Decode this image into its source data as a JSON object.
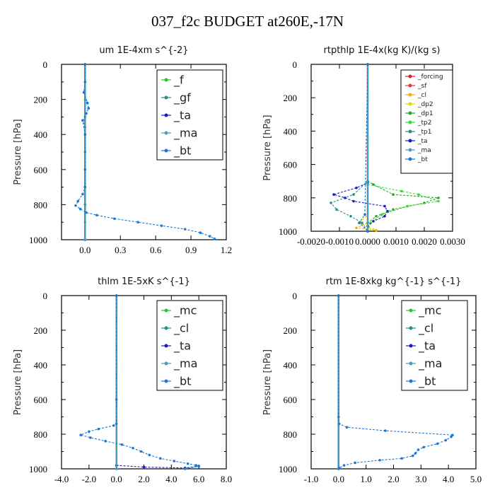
{
  "title": "037_f2c  BUDGET at260E,-17N",
  "chart_data": [
    {
      "type": "line",
      "title": "um  1E-4xm s^{-2}",
      "ylabel": "Pressure [hPa]",
      "xlim": [
        -0.2,
        1.2
      ],
      "ylim": [
        1000,
        0
      ],
      "xticks": [
        "0.0",
        "0.3",
        "0.6",
        "0.9",
        "1.2"
      ],
      "xtick_values": [
        0,
        0.3,
        0.6,
        0.9,
        1.2
      ],
      "yticks": [
        "0",
        "200",
        "400",
        "600",
        "800",
        "1000"
      ],
      "ytick_values": [
        0,
        200,
        400,
        600,
        800,
        1000
      ],
      "legend": "top-right",
      "series": [
        {
          "name": "_f",
          "color": "#22cc22",
          "values": [
            [
              0,
              0
            ],
            [
              0,
              100
            ],
            [
              0,
              200
            ],
            [
              0,
              300
            ],
            [
              0,
              400
            ],
            [
              0,
              500
            ],
            [
              0,
              600
            ],
            [
              0,
              700
            ],
            [
              0,
              800
            ],
            [
              0,
              900
            ],
            [
              0,
              1000
            ]
          ]
        },
        {
          "name": "_gf",
          "color": "#1f8f8f",
          "values": [
            [
              0,
              0
            ],
            [
              0,
              100
            ],
            [
              -0.01,
              160
            ],
            [
              0.02,
              220
            ],
            [
              0.03,
              250
            ],
            [
              0.01,
              280
            ],
            [
              -0.02,
              320
            ],
            [
              0,
              360
            ],
            [
              0,
              500
            ],
            [
              0,
              700
            ],
            [
              0,
              800
            ],
            [
              0,
              1000
            ]
          ]
        },
        {
          "name": "_ta",
          "color": "#1a1acc",
          "values": [
            [
              0,
              0
            ],
            [
              0,
              1000
            ]
          ]
        },
        {
          "name": "_ma",
          "color": "#40a0c0",
          "values": [
            [
              0,
              0
            ],
            [
              0,
              1000
            ]
          ]
        },
        {
          "name": "_bt",
          "color": "#1a78d8",
          "values": [
            [
              0,
              0
            ],
            [
              0,
              100
            ],
            [
              -0.01,
              160
            ],
            [
              0.02,
              220
            ],
            [
              0.03,
              250
            ],
            [
              0.01,
              280
            ],
            [
              -0.02,
              320
            ],
            [
              0,
              400
            ],
            [
              0,
              600
            ],
            [
              0,
              700
            ],
            [
              -0.02,
              740
            ],
            [
              -0.06,
              780
            ],
            [
              -0.08,
              805
            ],
            [
              -0.04,
              825
            ],
            [
              0.01,
              845
            ],
            [
              0.1,
              860
            ],
            [
              0.25,
              880
            ],
            [
              0.45,
              900
            ],
            [
              0.65,
              920
            ],
            [
              0.85,
              940
            ],
            [
              0.98,
              960
            ],
            [
              1.06,
              980
            ],
            [
              1.1,
              995
            ]
          ]
        }
      ]
    },
    {
      "type": "line",
      "title": "rtpthlp  1E-4x(kg K)/(kg s)",
      "ylabel": "Pressure [hPa]",
      "xlim": [
        -0.002,
        0.003
      ],
      "ylim": [
        1000,
        0
      ],
      "xticks": [
        "-0.0020",
        "-0.0010",
        "0.0000",
        "0.0010",
        "0.0020",
        "0.0030"
      ],
      "xtick_values": [
        -0.002,
        -0.001,
        0,
        0.001,
        0.002,
        0.003
      ],
      "yticks": [
        "0",
        "200",
        "400",
        "600",
        "800",
        "1000"
      ],
      "ytick_values": [
        0,
        200,
        400,
        600,
        800,
        1000
      ],
      "legend": "top-right",
      "series": [
        {
          "name": "_forcing",
          "color": "#dd2222",
          "values": [
            [
              0,
              0
            ],
            [
              0,
              1000
            ]
          ]
        },
        {
          "name": "_sf",
          "color": "#ee3333",
          "values": [
            [
              0,
              0
            ],
            [
              0,
              1000
            ]
          ]
        },
        {
          "name": "_cl",
          "color": "#ffaa00",
          "values": [
            [
              0,
              0
            ],
            [
              0,
              950
            ],
            [
              -0.0004,
              980
            ],
            [
              0.0003,
              995
            ]
          ]
        },
        {
          "name": "_dp2",
          "color": "#dddd00",
          "values": [
            [
              0,
              0
            ],
            [
              0,
              900
            ],
            [
              -0.0003,
              950
            ],
            [
              0.0002,
              990
            ]
          ]
        },
        {
          "name": "_dp1",
          "color": "#22aa22",
          "values": [
            [
              0,
              0
            ],
            [
              0,
              700
            ],
            [
              0.0002,
              720
            ],
            [
              0.0009,
              780
            ],
            [
              0.0025,
              800
            ],
            [
              0.002,
              830
            ],
            [
              0.0009,
              870
            ],
            [
              0.0003,
              910
            ],
            [
              0,
              950
            ],
            [
              0,
              1000
            ]
          ]
        },
        {
          "name": "_tp2",
          "color": "#33dd33",
          "values": [
            [
              0,
              0
            ],
            [
              0,
              700
            ],
            [
              0,
              720
            ],
            [
              0.0012,
              760
            ],
            [
              0.0018,
              780
            ],
            [
              0.0025,
              820
            ],
            [
              0.0014,
              850
            ],
            [
              0.0005,
              900
            ],
            [
              0.0001,
              950
            ],
            [
              0,
              1000
            ]
          ]
        },
        {
          "name": "_tp1",
          "color": "#1f9090",
          "values": [
            [
              0,
              0
            ],
            [
              0,
              700
            ],
            [
              -0.0005,
              780
            ],
            [
              -0.0013,
              830
            ],
            [
              -0.0011,
              870
            ],
            [
              -0.0006,
              910
            ],
            [
              -0.0002,
              950
            ],
            [
              0,
              1000
            ]
          ]
        },
        {
          "name": "_ta",
          "color": "#1a1acc",
          "values": [
            [
              0,
              0
            ],
            [
              0,
              710
            ],
            [
              -0.0004,
              740
            ],
            [
              -0.0012,
              780
            ],
            [
              -0.0008,
              800
            ],
            [
              -0.0005,
              820
            ],
            [
              0.0006,
              850
            ],
            [
              0.0007,
              880
            ],
            [
              0.0006,
              910
            ],
            [
              0.0002,
              940
            ],
            [
              0,
              970
            ],
            [
              0,
              1000
            ]
          ]
        },
        {
          "name": "_ma",
          "color": "#40a0c0",
          "values": [
            [
              0,
              0
            ],
            [
              0,
              1000
            ]
          ]
        },
        {
          "name": "_bt",
          "color": "#1a78d8",
          "values": [
            [
              0,
              0
            ],
            [
              -0.0001,
              900
            ],
            [
              -0.0003,
              950
            ],
            [
              0,
              1000
            ]
          ]
        }
      ]
    },
    {
      "type": "line",
      "title": "thlm  1E-5xK s^{-1}",
      "ylabel": "Pressure [hPa]",
      "xlim": [
        -4,
        8
      ],
      "ylim": [
        1000,
        0
      ],
      "xticks": [
        "-4.0",
        "-2.0",
        "0.0",
        "2.0",
        "4.0",
        "6.0",
        "8.0"
      ],
      "xtick_values": [
        -4,
        -2,
        0,
        2,
        4,
        6,
        8
      ],
      "yticks": [
        "0",
        "200",
        "400",
        "600",
        "800",
        "1000"
      ],
      "ytick_values": [
        0,
        200,
        400,
        600,
        800,
        1000
      ],
      "legend": "top-right",
      "series": [
        {
          "name": "_mc",
          "color": "#22cc22",
          "values": [
            [
              0,
              0
            ],
            [
              0,
              1000
            ]
          ]
        },
        {
          "name": "_cl",
          "color": "#1f8f8f",
          "values": [
            [
              0,
              0
            ],
            [
              0,
              1000
            ]
          ]
        },
        {
          "name": "_ta",
          "color": "#1a1acc",
          "values": [
            [
              0,
              0
            ],
            [
              0,
              980
            ],
            [
              2,
              990
            ],
            [
              5,
              995
            ],
            [
              6,
              985
            ]
          ]
        },
        {
          "name": "_ma",
          "color": "#40a0c0",
          "values": [
            [
              0,
              0
            ],
            [
              0,
              1000
            ]
          ]
        },
        {
          "name": "_bt",
          "color": "#1a78d8",
          "values": [
            [
              0,
              0
            ],
            [
              0,
              600
            ],
            [
              0,
              740
            ],
            [
              -0.2,
              750
            ],
            [
              -1.3,
              770
            ],
            [
              -2,
              785
            ],
            [
              -2.6,
              805
            ],
            [
              -1.9,
              820
            ],
            [
              -0.8,
              840
            ],
            [
              0.4,
              860
            ],
            [
              1.2,
              880
            ],
            [
              1.8,
              900
            ],
            [
              2.4,
              920
            ],
            [
              3.2,
              940
            ],
            [
              4.2,
              955
            ],
            [
              5.2,
              970
            ],
            [
              5.8,
              980
            ],
            [
              6,
              985
            ],
            [
              5,
              1000
            ]
          ]
        }
      ]
    },
    {
      "type": "line",
      "title": "rtm  1E-8xkg kg^{-1} s^{-1}",
      "ylabel": "Pressure [hPa]",
      "xlim": [
        -1,
        5
      ],
      "ylim": [
        1000,
        0
      ],
      "xticks": [
        "-1.0",
        "0.0",
        "1.0",
        "2.0",
        "3.0",
        "4.0",
        "5.0"
      ],
      "xtick_values": [
        -1,
        0,
        1,
        2,
        3,
        4,
        5
      ],
      "yticks": [
        "0",
        "200",
        "400",
        "600",
        "800",
        "1000"
      ],
      "ytick_values": [
        0,
        200,
        400,
        600,
        800,
        1000
      ],
      "legend": "top-right",
      "series": [
        {
          "name": "_mc",
          "color": "#22cc22",
          "values": [
            [
              0,
              0
            ],
            [
              0,
              1000
            ]
          ]
        },
        {
          "name": "_cl",
          "color": "#1f8f8f",
          "values": [
            [
              0,
              0
            ],
            [
              0,
              1000
            ]
          ]
        },
        {
          "name": "_ta",
          "color": "#1a1acc",
          "values": [
            [
              0,
              0
            ],
            [
              0,
              1000
            ]
          ]
        },
        {
          "name": "_ma",
          "color": "#40a0c0",
          "values": [
            [
              0,
              0
            ],
            [
              0,
              1000
            ]
          ]
        },
        {
          "name": "_bt",
          "color": "#1a78d8",
          "values": [
            [
              0,
              0
            ],
            [
              0,
              700
            ],
            [
              0.02,
              740
            ],
            [
              0.3,
              760
            ],
            [
              1.7,
              780
            ],
            [
              4.15,
              805
            ],
            [
              4.1,
              815
            ],
            [
              3.9,
              835
            ],
            [
              3.6,
              855
            ],
            [
              3.1,
              875
            ],
            [
              2.9,
              890
            ],
            [
              2.8,
              910
            ],
            [
              2.7,
              925
            ],
            [
              2.3,
              940
            ],
            [
              1.5,
              950
            ],
            [
              0.6,
              965
            ],
            [
              0.2,
              980
            ],
            [
              0.02,
              995
            ]
          ]
        }
      ]
    }
  ]
}
